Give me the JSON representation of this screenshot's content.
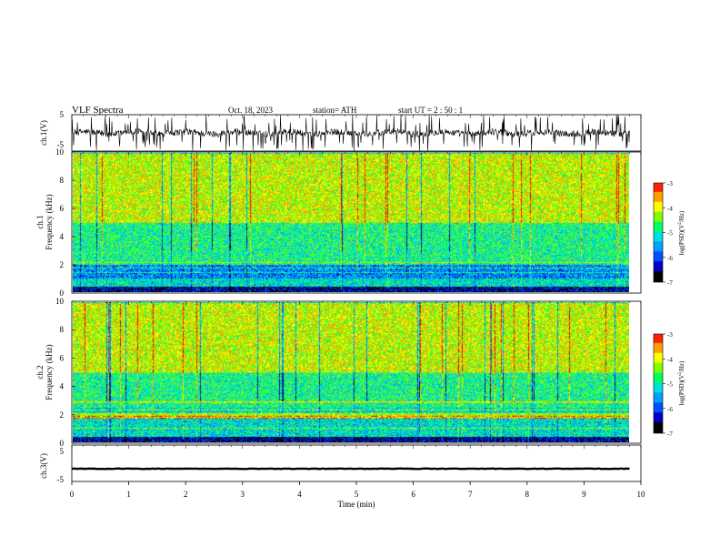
{
  "header": {
    "title": "VLF  Spectra",
    "date": "Oct. 18, 2023",
    "station": "station= ATH",
    "start": "start  UT  =   2  : 50 : 1"
  },
  "chart_data": [
    {
      "type": "line",
      "panel": "ch1-waveform",
      "ylabel": "ch.1(V)",
      "yticks": [
        "5",
        "-5"
      ],
      "ylim": [
        -5,
        5
      ],
      "x_range": [
        0,
        9.8
      ],
      "baseline": 0,
      "noise_amplitude": 0.9,
      "spike_count": 150,
      "line_color": "#000000"
    },
    {
      "type": "heatmap",
      "panel": "ch1-spectrogram",
      "ylabel_line1": "ch.1",
      "ylabel_line2": "Frequency  (kHz)",
      "yticks": [
        "0",
        "2",
        "4",
        "6",
        "8",
        "10"
      ],
      "ylim": [
        0,
        10
      ],
      "x_range": [
        0,
        9.8
      ],
      "description_bands": [
        {
          "from_khz": 0,
          "to_khz": 0.4,
          "level": "very-low"
        },
        {
          "from_khz": 0.4,
          "to_khz": 1,
          "level": "mixed-lines"
        },
        {
          "from_khz": 1,
          "to_khz": 2.3,
          "level": "low"
        },
        {
          "from_khz": 2.3,
          "to_khz": 5,
          "level": "mid"
        },
        {
          "from_khz": 5,
          "to_khz": 10,
          "level": "high"
        }
      ],
      "colorbar": {
        "label": "log(PSD)(V",
        "label_sup": "2",
        "label_end": "/Hz)",
        "ticks": [
          "-3",
          "-4",
          "-5",
          "-6",
          "-7"
        ],
        "range": [
          -7,
          -3
        ]
      }
    },
    {
      "type": "heatmap",
      "panel": "ch2-spectrogram",
      "ylabel_line1": "ch.2",
      "ylabel_line2": "Frequency  (kHz)",
      "yticks": [
        "0",
        "2",
        "4",
        "6",
        "8",
        "10"
      ],
      "ylim": [
        0,
        10
      ],
      "x_range": [
        0,
        9.8
      ],
      "description_bands": [
        {
          "from_khz": 0,
          "to_khz": 0.4,
          "level": "very-low"
        },
        {
          "from_khz": 0.4,
          "to_khz": 2.5,
          "level": "low-mid"
        },
        {
          "from_khz": 2.5,
          "to_khz": 5,
          "level": "mid"
        },
        {
          "from_khz": 5,
          "to_khz": 10,
          "level": "high"
        }
      ],
      "colorbar": {
        "label": "log(PSD)(V",
        "label_sup": "2",
        "label_end": "/Hz)",
        "ticks": [
          "-3",
          "-4",
          "-5",
          "-6",
          "-7"
        ],
        "range": [
          -7,
          -3
        ]
      }
    },
    {
      "type": "line",
      "panel": "ch3-waveform",
      "ylabel": "ch.3(V)",
      "yticks": [
        "5",
        "-5"
      ],
      "ylim": [
        -5,
        5
      ],
      "x_range": [
        0,
        9.8
      ],
      "baseline": -1.5,
      "noise_amplitude": 0.15,
      "line_color": "#000000"
    }
  ],
  "xaxis": {
    "label": "Time  (min)",
    "ticks": [
      "0",
      "1",
      "2",
      "3",
      "4",
      "5",
      "6",
      "7",
      "8",
      "9",
      "10"
    ],
    "range": [
      0,
      10
    ]
  },
  "palette": [
    "#000000",
    "#0000c8",
    "#0050ff",
    "#00a0ff",
    "#00e0e0",
    "#00ff60",
    "#80ff00",
    "#ffff00",
    "#ffa000",
    "#ff2000",
    "#c80000",
    "#ffffff"
  ]
}
